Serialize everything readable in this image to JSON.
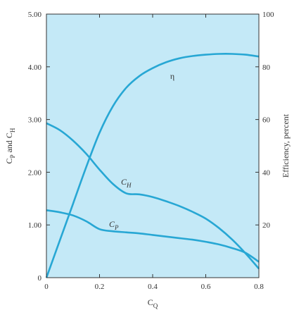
{
  "chart_data": {
    "type": "line",
    "x_axis": {
      "label_base": "C",
      "label_sub": "Q",
      "range": [
        0,
        0.8
      ],
      "ticks": [
        "0",
        "0.2",
        "0.4",
        "0.6",
        "0.8"
      ]
    },
    "y_axis_left": {
      "label": {
        "p1": "C",
        "p1_sub": "P",
        "mid": " and ",
        "p2": "C",
        "p2_sub": "H"
      },
      "range": [
        0,
        5
      ],
      "ticks": [
        "0",
        "1.00",
        "2.00",
        "3.00",
        "4.00",
        "5.00"
      ]
    },
    "y_axis_right": {
      "label": "Efficiency, percent",
      "range": [
        0,
        100
      ],
      "ticks": [
        "20",
        "40",
        "60",
        "80",
        "100"
      ]
    },
    "grid": false,
    "colors": {
      "plot_background": "#c4e9f7",
      "curve": "#27a7d4",
      "frame": "#333333"
    },
    "series": [
      {
        "name": "η",
        "axis": "right",
        "x": [
          0.0,
          0.05,
          0.1,
          0.15,
          0.2,
          0.25,
          0.3,
          0.35,
          0.4,
          0.45,
          0.5,
          0.55,
          0.6,
          0.65,
          0.7,
          0.75,
          0.8
        ],
        "y": [
          0,
          14,
          28,
          42,
          55,
          65,
          72,
          76.5,
          79.5,
          81.7,
          83.2,
          84.1,
          84.6,
          84.9,
          84.9,
          84.6,
          83.9
        ]
      },
      {
        "name": "C",
        "name_sub": "H",
        "axis": "left",
        "x": [
          0.0,
          0.05,
          0.1,
          0.15,
          0.2,
          0.25,
          0.3,
          0.35,
          0.4,
          0.45,
          0.5,
          0.55,
          0.6,
          0.65,
          0.7,
          0.75,
          0.8
        ],
        "y": [
          2.93,
          2.8,
          2.6,
          2.35,
          2.05,
          1.78,
          1.6,
          1.58,
          1.53,
          1.45,
          1.36,
          1.25,
          1.12,
          0.94,
          0.72,
          0.46,
          0.17
        ]
      },
      {
        "name": "C",
        "name_sub": "P",
        "axis": "left",
        "x": [
          0.0,
          0.05,
          0.1,
          0.15,
          0.2,
          0.25,
          0.3,
          0.35,
          0.4,
          0.45,
          0.5,
          0.55,
          0.6,
          0.65,
          0.7,
          0.75,
          0.8
        ],
        "y": [
          1.28,
          1.24,
          1.18,
          1.07,
          0.92,
          0.88,
          0.86,
          0.84,
          0.81,
          0.78,
          0.75,
          0.72,
          0.68,
          0.63,
          0.56,
          0.47,
          0.3
        ]
      }
    ]
  }
}
